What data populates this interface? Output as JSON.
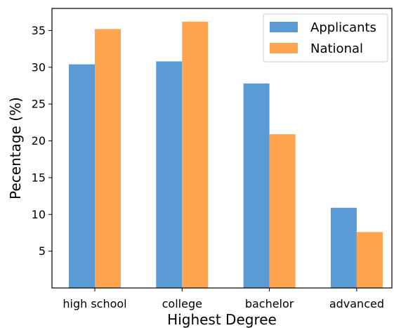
{
  "chart_data": {
    "type": "bar",
    "title": "",
    "xlabel": "Highest Degree",
    "ylabel": "Pecentage (%)",
    "categories": [
      "high school",
      "college",
      "bachelor",
      "advanced"
    ],
    "series": [
      {
        "name": "Applicants",
        "values": [
          30.4,
          30.8,
          27.8,
          10.9
        ],
        "color": "#5b9bd5"
      },
      {
        "name": "National",
        "values": [
          35.2,
          36.2,
          20.9,
          7.6
        ],
        "color": "#ffa550"
      }
    ],
    "ylim": [
      0,
      38
    ],
    "yticks": [
      5,
      10,
      15,
      20,
      25,
      30,
      35
    ],
    "grid": false,
    "legend_position": "top-right"
  }
}
